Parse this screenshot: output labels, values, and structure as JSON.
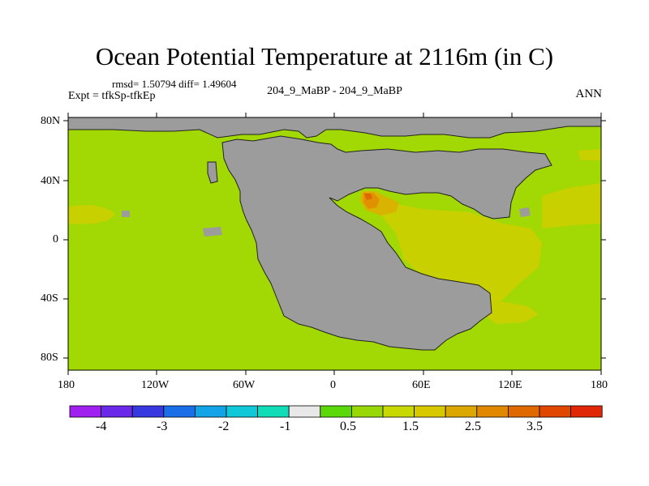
{
  "title": "Ocean Potential Temperature at 2116m (in C)",
  "stats": "rmsd= 1.50794 diff= 1.49604",
  "expt": "Expt = tfkSp-tfkEp",
  "case_label": "204_9_MaBP - 204_9_MaBP",
  "season": "ANN",
  "lat_ticks": [
    "80N",
    "40N",
    "0",
    "40S",
    "80S"
  ],
  "lon_ticks": [
    "180",
    "120W",
    "60W",
    "0",
    "60E",
    "120E",
    "180"
  ],
  "colorbar": {
    "colors": [
      "#a020f0",
      "#6a28e8",
      "#3838e0",
      "#1a6ee8",
      "#12a4e6",
      "#10c8d8",
      "#10ddb8",
      "#e8e8e8",
      "#5ad80a",
      "#98d806",
      "#c8d802",
      "#d8c800",
      "#dca800",
      "#e08800",
      "#e06800",
      "#e04800",
      "#e02808"
    ],
    "labels": [
      "-4",
      "-3",
      "-2",
      "-1",
      "0.5",
      "1.5",
      "2.5",
      "3.5"
    ]
  },
  "field_colors": {
    "land": "#9c9c9c",
    "base": "#a2d804",
    "warm1": "#c8d000",
    "warm2": "#d8b400",
    "warm3": "#e09000",
    "warm4": "#e06800",
    "cool": "#5ad80a"
  }
}
